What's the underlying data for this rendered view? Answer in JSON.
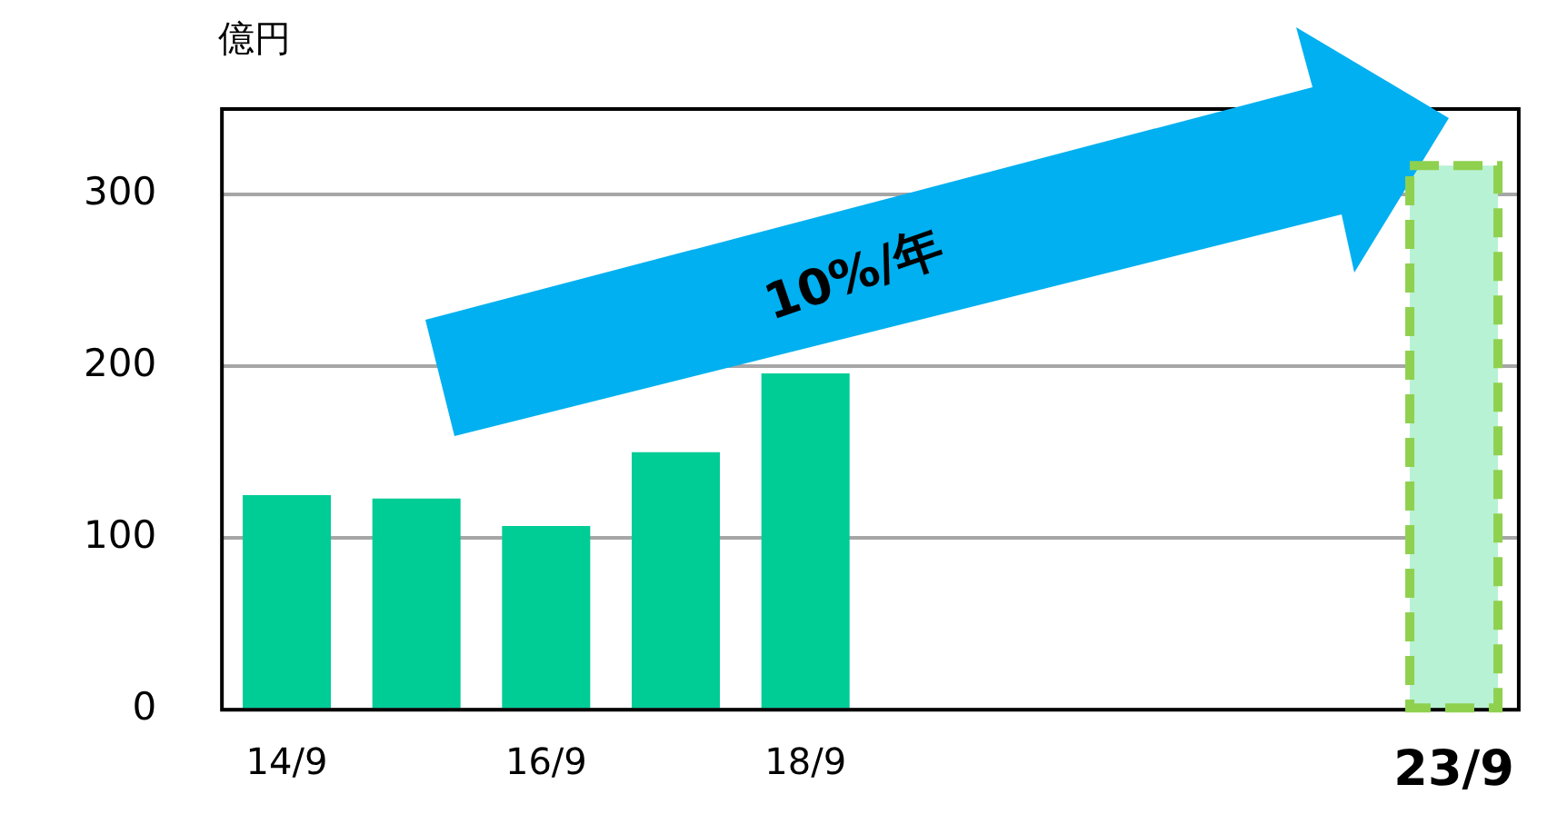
{
  "chart_data": {
    "type": "bar",
    "ylabel": "億円",
    "categories": [
      "14/9",
      null,
      "16/9",
      null,
      "18/9",
      null,
      null,
      null,
      null,
      "23/9"
    ],
    "series": [
      {
        "color": "#00cc96",
        "values": [
          125,
          123,
          107,
          150,
          196,
          null,
          null,
          null,
          null,
          null
        ]
      },
      {
        "color": "#b8f2d4",
        "line_style": "dashed",
        "values": [
          null,
          null,
          null,
          null,
          null,
          null,
          null,
          null,
          null,
          317
        ]
      }
    ],
    "ylim": [
      0,
      350
    ],
    "yticks": [
      0,
      100,
      200,
      300
    ],
    "grid": "y",
    "legend": false,
    "annotations": [
      "10%/年"
    ]
  }
}
